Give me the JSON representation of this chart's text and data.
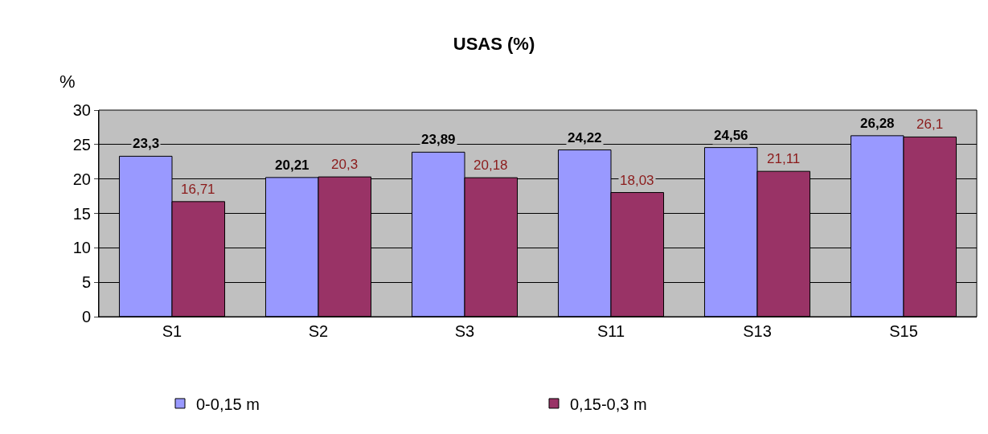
{
  "chart_data": {
    "type": "bar",
    "title": "USAS (%)",
    "ylabel": "%",
    "categories": [
      "S1",
      "S2",
      "S3",
      "S11",
      "S13",
      "S15"
    ],
    "series": [
      {
        "name": "0-0,15 m",
        "color": "#9999ff",
        "values": [
          23.3,
          20.21,
          23.89,
          24.22,
          24.56,
          26.28
        ],
        "value_labels": [
          "23,3",
          "20,21",
          "23,89",
          "24,22",
          "24,56",
          "26,28"
        ]
      },
      {
        "name": "0,15-0,3 m",
        "color": "#993366",
        "values": [
          16.71,
          20.3,
          20.18,
          18.03,
          21.11,
          26.1
        ],
        "value_labels": [
          "16,71",
          "20,3",
          "20,18",
          "18,03",
          "21,11",
          "26,1"
        ]
      }
    ],
    "ylim": [
      0,
      30
    ],
    "yticks": [
      0,
      5,
      10,
      15,
      20,
      25,
      30
    ],
    "grid": "y",
    "legend": "bottom"
  }
}
